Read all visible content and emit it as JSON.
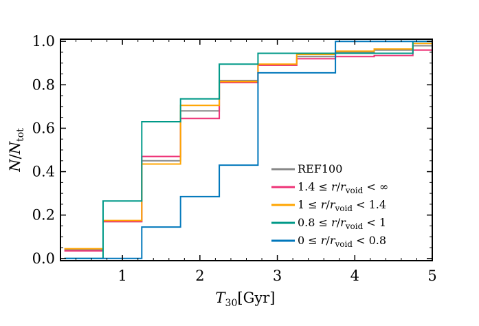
{
  "chart_data": {
    "type": "line",
    "step": "post",
    "title": "",
    "xlabel": "T_30 [Gyr]",
    "ylabel": "N/N_tot",
    "xlim": [
      0.2,
      5.0
    ],
    "ylim": [
      -0.01,
      1.01
    ],
    "xticks": [
      1,
      2,
      3,
      4,
      5
    ],
    "xtick_labels": [
      "1",
      "2",
      "3",
      "4",
      "5"
    ],
    "yticks": [
      0.0,
      0.2,
      0.4,
      0.6,
      0.8,
      1.0
    ],
    "ytick_labels": [
      "0.0",
      "0.2",
      "0.4",
      "0.6",
      "0.8",
      "1.0"
    ],
    "grid": false,
    "legend_position": "lower-right",
    "bin_edges": [
      0.25,
      0.75,
      1.25,
      1.75,
      2.25,
      2.75,
      3.25,
      3.75,
      4.25,
      4.75,
      5.0
    ],
    "series": [
      {
        "name": "REF100",
        "color": "#888888",
        "values": [
          0.04,
          0.17,
          0.45,
          0.68,
          0.82,
          0.89,
          0.93,
          0.95,
          0.96,
          0.98
        ]
      },
      {
        "name": "1.4 ≤ r/r_void < ∞",
        "color": "#ee3377",
        "values": [
          0.035,
          0.17,
          0.47,
          0.645,
          0.81,
          0.89,
          0.92,
          0.93,
          0.935,
          0.96
        ]
      },
      {
        "name": "1 ≤ r/r_void < 1.4",
        "color": "#ffa500",
        "values": [
          0.045,
          0.175,
          0.435,
          0.705,
          0.815,
          0.895,
          0.94,
          0.955,
          0.965,
          0.99
        ]
      },
      {
        "name": "0.8 ≤ r/r_void < 1",
        "color": "#009988",
        "values": [
          0.0,
          0.265,
          0.63,
          0.735,
          0.895,
          0.945,
          0.945,
          0.945,
          0.945,
          1.0
        ]
      },
      {
        "name": "0 ≤ r/r_void < 0.8",
        "color": "#0077bb",
        "values": [
          0.0,
          0.0,
          0.145,
          0.285,
          0.43,
          0.855,
          0.855,
          1.0,
          1.0,
          1.0
        ]
      }
    ]
  }
}
